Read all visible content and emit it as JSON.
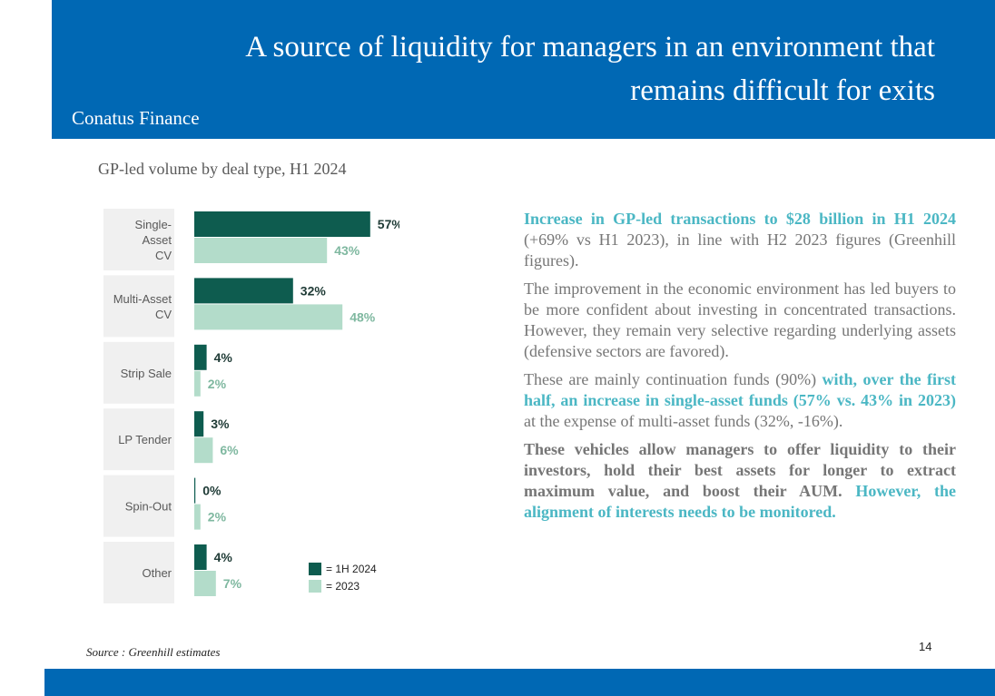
{
  "header": {
    "title": "A source of liquidity for managers in an environment that remains difficult for exits",
    "brand": "Conatus Finance"
  },
  "chart_caption": "GP-led volume by deal type, H1 2024",
  "chart_data": {
    "type": "bar",
    "orientation": "horizontal",
    "title": "GP-led volume by deal type, H1 2024",
    "categories": [
      "Single-Asset CV",
      "Multi-Asset CV",
      "Strip Sale",
      "LP Tender",
      "Spin-Out",
      "Other"
    ],
    "series": [
      {
        "name": "= 1H 2024",
        "values": [
          57,
          32,
          4,
          3,
          0,
          4
        ],
        "color": "#0e5c4f"
      },
      {
        "name": "= 2023",
        "values": [
          43,
          48,
          2,
          6,
          2,
          7
        ],
        "color": "#b3dcca"
      }
    ],
    "value_suffix": "%",
    "xlim": [
      0,
      60
    ],
    "grid": false,
    "legend": "bottom-right"
  },
  "text": {
    "p1_hl": "Increase in GP-led transactions to $28 billion in H1 2024",
    "p1_rest": " (+69% vs H1 2023), in line with H2 2023 figures (Greenhill figures).",
    "p2": "The improvement in the economic environment has led buyers to be more confident about investing in concentrated transactions. However, they remain very selective regarding underlying assets (defensive sectors are favored).",
    "p3_a": "These are mainly continuation funds (90%) ",
    "p3_hl": "with, over the first half, an increase in single-asset funds (57% vs. 43% in 2023)",
    "p3_b": " at the expense of multi-asset funds (32%, -16%).",
    "p4_strong": "These vehicles allow managers to offer liquidity to their investors, hold their best assets for longer to extract maximum value, and boost their AUM. ",
    "p4_hl": "However, the alignment of interests needs to be monitored."
  },
  "source": "Source : Greenhill estimates",
  "page_number": "14",
  "colors": {
    "brand_blue": "#0068b4",
    "series_2024": "#0e5c4f",
    "series_2023": "#b3dcca",
    "highlight": "#4bb7c4"
  }
}
